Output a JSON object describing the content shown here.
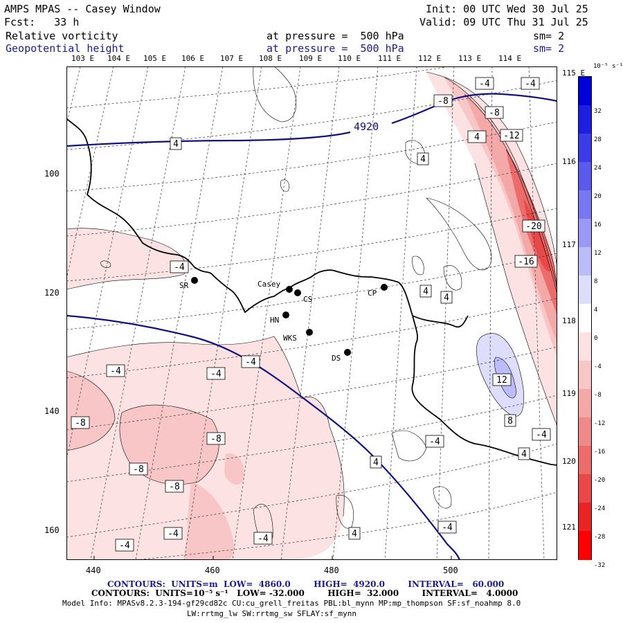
{
  "header": {
    "title": "AMPS MPAS -- Casey Window",
    "fcst": "Fcst:   33 h",
    "init": "Init: 00 UTC Wed 30 Jul 25",
    "valid": "Valid: 09 UTC Thu 31 Jul 25",
    "field1_name": "Relative vorticity",
    "field1_level": "at pressure =  500 hPa",
    "field1_sm": "sm= 2",
    "field2_name": "Geopotential height",
    "field2_level": "at pressure =  500 hPa",
    "field2_sm": "sm= 2"
  },
  "longitudes": [
    "103 E",
    "104 E",
    "105 E",
    "106 E",
    "107 E",
    "108 E",
    "109 E",
    "110 E",
    "111 E",
    "112 E",
    "113 E",
    "114 E",
    "115 E",
    "116 E",
    "117 E",
    "118 E",
    "119 E",
    "120 E",
    "121 E"
  ],
  "x_ticks": [
    "440",
    "460",
    "480",
    "500"
  ],
  "y_ticks": [
    "100",
    "120",
    "140",
    "160"
  ],
  "colorbar": {
    "unit_label": "10⁻⁵ s⁻¹",
    "levels": [
      "32",
      "28",
      "24",
      "20",
      "16",
      "12",
      "8",
      "4",
      "0",
      "-4",
      "-8",
      "-12",
      "-16",
      "-20",
      "-24",
      "-28",
      "-32"
    ],
    "colors": [
      "#0000d8",
      "#1e1ee0",
      "#3c3ce6",
      "#5a5aec",
      "#7878f0",
      "#9a9af4",
      "#bcbcf8",
      "#dedefc",
      "#ffffff",
      "#fce2e2",
      "#f8c6c6",
      "#f4a8a8",
      "#f08a8a",
      "#ec6c6c",
      "#e84848",
      "#e82424",
      "#ff0000"
    ]
  },
  "stations": [
    {
      "name": "SR"
    },
    {
      "name": "Casey"
    },
    {
      "name": "CS"
    },
    {
      "name": "HN"
    },
    {
      "name": "CP"
    },
    {
      "name": "WKS"
    },
    {
      "name": "DS"
    }
  ],
  "height_labels": [
    "4920"
  ],
  "vort_labels": [
    "-4",
    "-4",
    "-8",
    "-8",
    "-12",
    "4",
    "4",
    "4",
    "-4",
    "-20",
    "-16",
    "4",
    "4",
    "-4",
    "-4",
    "-4",
    "12",
    "-8",
    "8",
    "-4",
    "-8",
    "-4",
    "-8",
    "-8",
    "4",
    "4",
    "-4",
    "-4",
    "-4",
    "4",
    "-4",
    "-4"
  ],
  "footer": {
    "contours1": "CONTOURS:  UNITS=m  LOW=  4860.0        HIGH=  4920.0        INTERVAL=   60.000",
    "contours2": "CONTOURS:  UNITS=10⁻⁵ s⁻¹   LOW= -32.000        HIGH=  32.000        INTERVAL=   4.0000",
    "model_info": "Model Info: MPASv8.2.3-194-gf29cd82c CU:cu_grell_freitas PBL:bl_mynn MP:mp_thompson SF:sf_noahmp 8.0",
    "model_info2": "LW:rrtmg_lw SW:rrtmg_sw SFLAY:sf_mynn"
  }
}
